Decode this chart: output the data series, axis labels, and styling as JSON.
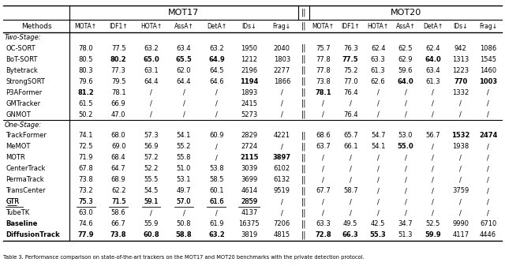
{
  "title_mot17": "MOT17",
  "title_mot20": "MOT20",
  "two_stage_label": "Two-Stage:",
  "one_stage_label": "One-Stage:",
  "col_labels": [
    "MOTA↑",
    "IDF1↑",
    "HOTA↑",
    "AssA↑",
    "DetA↑",
    "IDs↓",
    "Frag↓"
  ],
  "rows": [
    {
      "method": "OC-SORT",
      "bold_m": false,
      "mot17": [
        "78.0",
        "77.5",
        "63.2",
        "63.4",
        "63.2",
        "1950",
        "2040"
      ],
      "mot20": [
        "75.7",
        "76.3",
        "62.4",
        "62.5",
        "62.4",
        "942",
        "1086"
      ],
      "b17": [],
      "b20": [],
      "u17": []
    },
    {
      "method": "BoT-SORT",
      "bold_m": false,
      "mot17": [
        "80.5",
        "80.2",
        "65.0",
        "65.5",
        "64.9",
        "1212",
        "1803"
      ],
      "mot20": [
        "77.8",
        "77.5",
        "63.3",
        "62.9",
        "64.0",
        "1313",
        "1545"
      ],
      "b17": [
        1,
        2,
        3,
        4
      ],
      "b20": [
        1,
        4
      ],
      "u17": []
    },
    {
      "method": "Bytetrack",
      "bold_m": false,
      "mot17": [
        "80.3",
        "77.3",
        "63.1",
        "62.0",
        "64.5",
        "2196",
        "2277"
      ],
      "mot20": [
        "77.8",
        "75.2",
        "61.3",
        "59.6",
        "63.4",
        "1223",
        "1460"
      ],
      "b17": [],
      "b20": [],
      "u17": []
    },
    {
      "method": "StrongSORT",
      "bold_m": false,
      "mot17": [
        "79.6",
        "79.5",
        "64.4",
        "64.4",
        "64.6",
        "1194",
        "1866"
      ],
      "mot20": [
        "73.8",
        "77.0",
        "62.6",
        "64.0",
        "61.3",
        "770",
        "1003"
      ],
      "b17": [
        5
      ],
      "b20": [
        3,
        5,
        6
      ],
      "u17": []
    },
    {
      "method": "P3AFormer",
      "bold_m": false,
      "mot17": [
        "81.2",
        "78.1",
        "/",
        "/",
        "/",
        "1893",
        "/"
      ],
      "mot20": [
        "78.1",
        "76.4",
        "/",
        "/",
        "/",
        "1332",
        "/"
      ],
      "b17": [
        0
      ],
      "b20": [
        0
      ],
      "u17": []
    },
    {
      "method": "GMTracker",
      "bold_m": false,
      "mot17": [
        "61.5",
        "66.9",
        "/",
        "/",
        "/",
        "2415",
        "/"
      ],
      "mot20": [
        "/",
        "/",
        "/",
        "/",
        "/",
        "/",
        "/"
      ],
      "b17": [],
      "b20": [],
      "u17": []
    },
    {
      "method": "GNMOT",
      "bold_m": false,
      "mot17": [
        "50.2",
        "47.0",
        "/",
        "/",
        "/",
        "5273",
        "/"
      ],
      "mot20": [
        "/",
        "76.4",
        "/",
        "/",
        "/",
        "/",
        "/"
      ],
      "b17": [],
      "b20": [],
      "u17": []
    },
    {
      "method": "TrackFormer",
      "bold_m": false,
      "mot17": [
        "74.1",
        "68.0",
        "57.3",
        "54.1",
        "60.9",
        "2829",
        "4221"
      ],
      "mot20": [
        "68.6",
        "65.7",
        "54.7",
        "53.0",
        "56.7",
        "1532",
        "2474"
      ],
      "b17": [],
      "b20": [
        5,
        6
      ],
      "u17": []
    },
    {
      "method": "MeMOT",
      "bold_m": false,
      "mot17": [
        "72.5",
        "69.0",
        "56.9",
        "55.2",
        "/",
        "2724",
        "/"
      ],
      "mot20": [
        "63.7",
        "66.1",
        "54.1",
        "55.0",
        "/",
        "1938",
        "/"
      ],
      "b17": [],
      "b20": [
        3
      ],
      "u17": []
    },
    {
      "method": "MOTR",
      "bold_m": false,
      "mot17": [
        "71.9",
        "68.4",
        "57.2",
        "55.8",
        "/",
        "2115",
        "3897"
      ],
      "mot20": [
        "/",
        "/",
        "/",
        "/",
        "/",
        "/",
        "/"
      ],
      "b17": [
        5,
        6
      ],
      "b20": [],
      "u17": []
    },
    {
      "method": "CenterTrack",
      "bold_m": false,
      "mot17": [
        "67.8",
        "64.7",
        "52.2",
        "51.0",
        "53.8",
        "3039",
        "6102"
      ],
      "mot20": [
        "/",
        "/",
        "/",
        "/",
        "/",
        "/",
        "/"
      ],
      "b17": [],
      "b20": [],
      "u17": []
    },
    {
      "method": "PermaTrack",
      "bold_m": false,
      "mot17": [
        "73.8",
        "68.9",
        "55.5",
        "53.1",
        "58.5",
        "3699",
        "6132"
      ],
      "mot20": [
        "/",
        "/",
        "/",
        "/",
        "/",
        "/",
        "/"
      ],
      "b17": [],
      "b20": [],
      "u17": []
    },
    {
      "method": "TransCenter",
      "bold_m": false,
      "mot17": [
        "73.2",
        "62.2",
        "54.5",
        "49.7",
        "60.1",
        "4614",
        "9519"
      ],
      "mot20": [
        "67.7",
        "58.7",
        "/",
        "/",
        "/",
        "3759",
        "/"
      ],
      "b17": [],
      "b20": [],
      "u17": []
    },
    {
      "method": "GTR",
      "bold_m": false,
      "mot17": [
        "75.3",
        "71.5",
        "59.1",
        "57.0",
        "61.6",
        "2859",
        "/"
      ],
      "mot20": [
        "/",
        "/",
        "/",
        "/",
        "/",
        "/",
        "/"
      ],
      "b17": [],
      "b20": [],
      "u17": [
        0,
        1,
        2,
        3,
        4,
        5
      ],
      "underline_method": true
    },
    {
      "method": "TubeTK",
      "bold_m": false,
      "mot17": [
        "63.0",
        "58.6",
        "/",
        "/",
        "/",
        "4137",
        "/"
      ],
      "mot20": [
        "/",
        "/",
        "/",
        "/",
        "/",
        "/",
        "/"
      ],
      "b17": [],
      "b20": [],
      "u17": []
    },
    {
      "method": "Baseline",
      "bold_m": true,
      "mot17": [
        "74.6",
        "66.7",
        "55.9",
        "50.8",
        "61.9",
        "16375",
        "7206"
      ],
      "mot20": [
        "63.3",
        "49.5",
        "42.5",
        "34.7",
        "52.5",
        "9990",
        "6710"
      ],
      "b17": [],
      "b20": [],
      "u17": []
    },
    {
      "method": "DiffusionTrack",
      "bold_m": true,
      "mot17": [
        "77.9",
        "73.8",
        "60.8",
        "58.8",
        "63.2",
        "3819",
        "4815"
      ],
      "mot20": [
        "72.8",
        "66.3",
        "55.3",
        "51.3",
        "59.9",
        "4117",
        "4446"
      ],
      "b17": [
        0,
        1,
        2,
        3,
        4
      ],
      "b20": [
        0,
        1,
        2,
        4
      ],
      "u17": []
    }
  ],
  "caption": "Table 3. Performance comparison on state-of-the-art trackers on the MOT17 and MOT20 benchmarks with the private detection protocol."
}
